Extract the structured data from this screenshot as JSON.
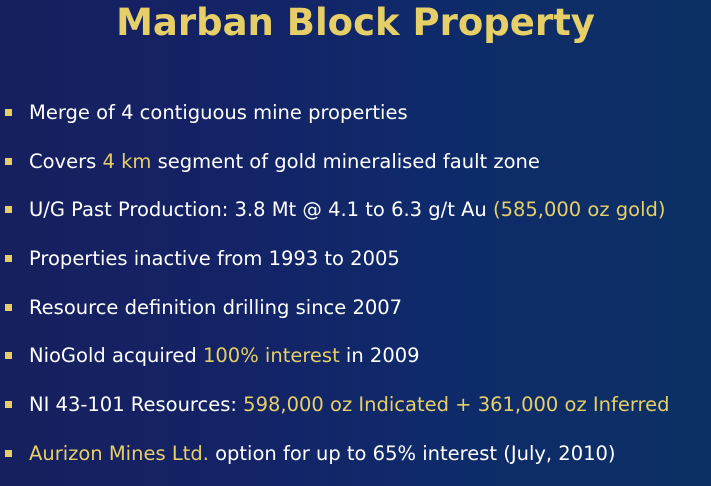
{
  "title": "Marban Block Property",
  "colors": {
    "title": "#e6cf67",
    "highlight": "#e6cf67",
    "text": "#ffffff",
    "background_left": "#17205e",
    "background_right": "#0c3064"
  },
  "bullets": [
    {
      "text": "Merge of 4 contiguous mine properties"
    },
    {
      "text_a": "Covers ",
      "highlight": "4 km",
      "text_b": " segment of gold mineralised fault zone"
    },
    {
      "text": "U/G Past Production: 3.8 Mt @ 4.1 to 6.3 g/t Au ",
      "highlight": "(585,000 oz gold)"
    },
    {
      "text": "Properties inactive from 1993 to 2005"
    },
    {
      "text": "Resource definition drilling since 2007"
    },
    {
      "text_a": "NioGold acquired ",
      "highlight": "100% interest",
      "text_b": " in 2009"
    },
    {
      "text": "NI 43-101 Resources: ",
      "highlight": "598,000 oz Indicated + 361,000 oz Inferred"
    },
    {
      "highlight": "Aurizon Mines Ltd.",
      "text": " option for up to 65% interest (July, 2010)"
    }
  ]
}
